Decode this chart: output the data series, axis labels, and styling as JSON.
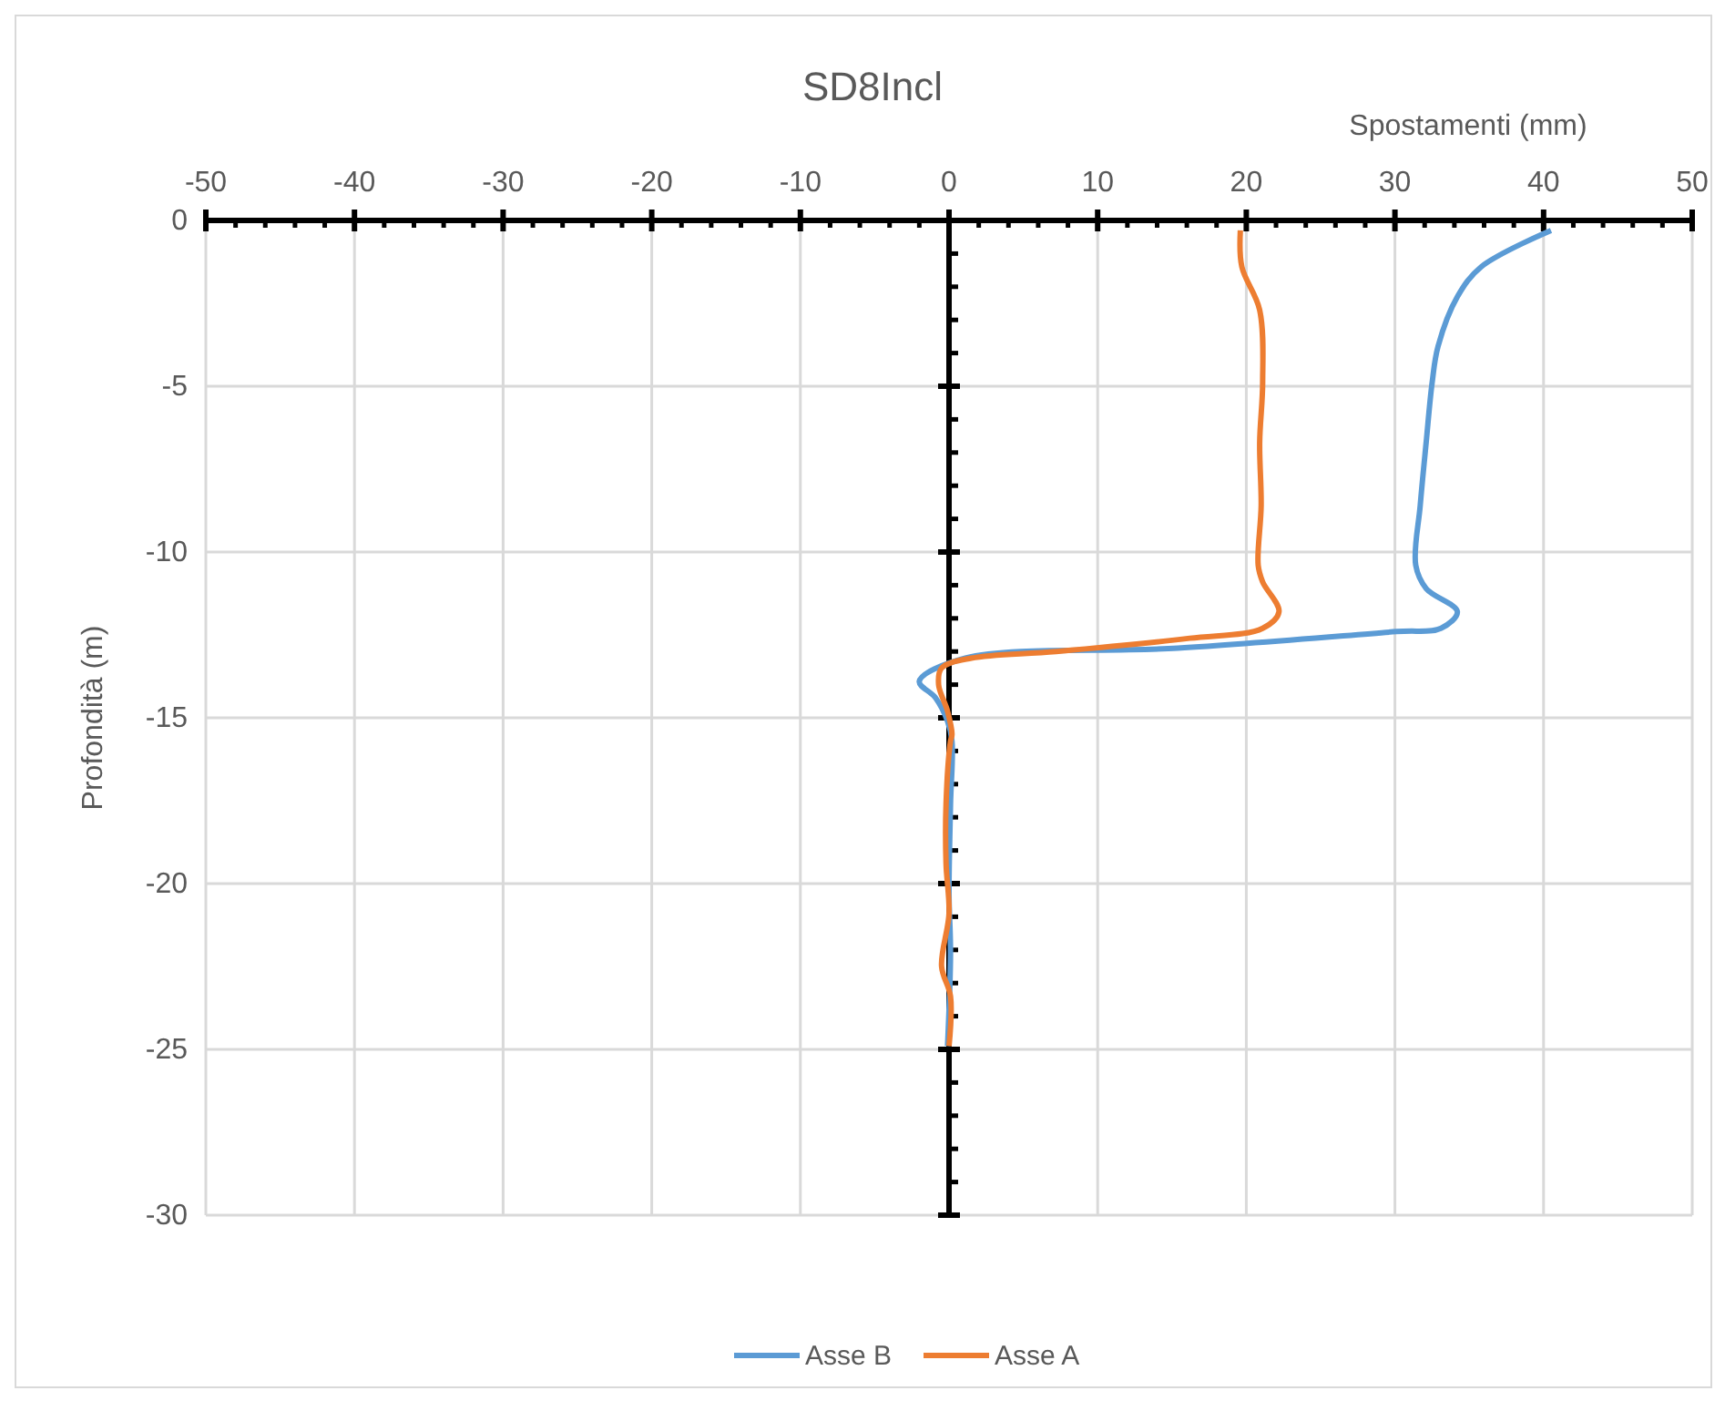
{
  "chart_data": {
    "type": "line",
    "title": "SD8Incl",
    "xlabel": "Spostamenti (mm)",
    "ylabel": "Profondità (m)",
    "xlim": [
      -50,
      50
    ],
    "ylim": [
      -30,
      0
    ],
    "xticks": [
      -50,
      {
        "value": -48,
        "label": null
      },
      {
        "value": -46,
        "label": null
      },
      {
        "value": -44,
        "label": null
      },
      {
        "value": -42,
        "label": null
      },
      -40,
      {
        "value": -38,
        "label": null
      },
      {
        "value": -36,
        "label": null
      },
      {
        "value": -34,
        "label": null
      },
      {
        "value": -32,
        "label": null
      },
      -30,
      {
        "value": -28,
        "label": null
      },
      {
        "value": -26,
        "label": null
      },
      {
        "value": -24,
        "label": null
      },
      {
        "value": -22,
        "label": null
      },
      -20,
      {
        "value": -18,
        "label": null
      },
      {
        "value": -16,
        "label": null
      },
      {
        "value": -14,
        "label": null
      },
      {
        "value": -12,
        "label": null
      },
      -10,
      {
        "value": -8,
        "label": null
      },
      {
        "value": -6,
        "label": null
      },
      {
        "value": -4,
        "label": null
      },
      {
        "value": -2,
        "label": null
      },
      0,
      {
        "value": 2,
        "label": null
      },
      {
        "value": 4,
        "label": null
      },
      {
        "value": 6,
        "label": null
      },
      {
        "value": 8,
        "label": null
      },
      10,
      {
        "value": 12,
        "label": null
      },
      {
        "value": 14,
        "label": null
      },
      {
        "value": 16,
        "label": null
      },
      {
        "value": 18,
        "label": null
      },
      20,
      {
        "value": 22,
        "label": null
      },
      {
        "value": 24,
        "label": null
      },
      {
        "value": 26,
        "label": null
      },
      {
        "value": 28,
        "label": null
      },
      30,
      {
        "value": 32,
        "label": null
      },
      {
        "value": 34,
        "label": null
      },
      {
        "value": 36,
        "label": null
      },
      {
        "value": 38,
        "label": null
      },
      40,
      {
        "value": 42,
        "label": null
      },
      {
        "value": 44,
        "label": null
      },
      {
        "value": 46,
        "label": null
      },
      {
        "value": 48,
        "label": null
      },
      50
    ],
    "yticks": [
      -30,
      {
        "value": -29,
        "label": null
      },
      {
        "value": -28,
        "label": null
      },
      {
        "value": -27,
        "label": null
      },
      {
        "value": -26,
        "label": null
      },
      -25,
      {
        "value": -24,
        "label": null
      },
      {
        "value": -23,
        "label": null
      },
      {
        "value": -22,
        "label": null
      },
      {
        "value": -21,
        "label": null
      },
      -20,
      {
        "value": -19,
        "label": null
      },
      {
        "value": -18,
        "label": null
      },
      {
        "value": -17,
        "label": null
      },
      {
        "value": -16,
        "label": null
      },
      -15,
      {
        "value": -14,
        "label": null
      },
      {
        "value": -13,
        "label": null
      },
      {
        "value": -12,
        "label": null
      },
      {
        "value": -11,
        "label": null
      },
      -10,
      {
        "value": -9,
        "label": null
      },
      {
        "value": -8,
        "label": null
      },
      {
        "value": -7,
        "label": null
      },
      {
        "value": -6,
        "label": null
      },
      -5,
      {
        "value": -4,
        "label": null
      },
      {
        "value": -3,
        "label": null
      },
      {
        "value": -2,
        "label": null
      },
      {
        "value": -1,
        "label": null
      },
      0
    ],
    "grid": true,
    "legend": "bottom",
    "marker": "none",
    "line_style": "solid",
    "series": [
      {
        "name": "Asse B",
        "color": "#5b9bd5",
        "x": [
          40.5,
          35.8,
          34.2,
          32.9,
          32.5,
          32.1,
          31.7,
          31.4,
          32.1,
          34.2,
          33.1,
          30.1,
          15.4,
          1.1,
          -2,
          -0.9,
          -0.1,
          0.2,
          0.1,
          0,
          0.1,
          -0.1
        ],
        "values": [
          -0.3,
          -1.4,
          -2.3,
          -3.8,
          -4.9,
          -6.7,
          -8.6,
          -10.4,
          -11.1,
          -11.8,
          -12.3,
          -12.4,
          -12.9,
          -13.2,
          -13.9,
          -14.4,
          -15.1,
          -15.7,
          -17.6,
          -20.3,
          -22.1,
          -24.9
        ]
      },
      {
        "name": "Asse A",
        "color": "#ed7d31",
        "x": [
          19.6,
          19.7,
          20.9,
          21.1,
          20.9,
          21,
          20.8,
          21.1,
          22.2,
          21.1,
          16.2,
          7.2,
          1.5,
          -0.5,
          -0.7,
          -0.1,
          0.2,
          0.1,
          -0.2,
          -0.2,
          0,
          -0.5,
          0.1,
          0
        ],
        "values": [
          -0.3,
          -1.4,
          -2.7,
          -4.9,
          -6.7,
          -8.6,
          -10.4,
          -10.9,
          -11.8,
          -12.3,
          -12.6,
          -13,
          -13.2,
          -13.5,
          -14,
          -14.8,
          -15.5,
          -15.7,
          -17.6,
          -19.4,
          -20.9,
          -22.5,
          -23.4,
          -24.9
        ]
      }
    ]
  }
}
